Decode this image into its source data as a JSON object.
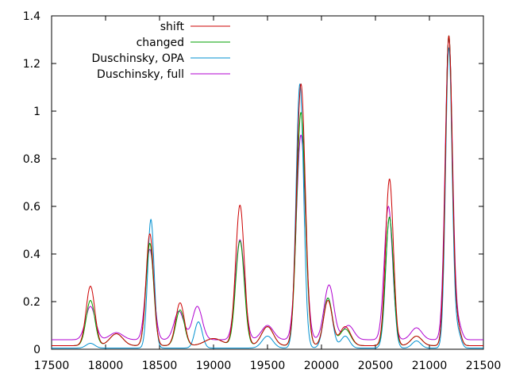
{
  "chart_data": {
    "type": "line",
    "xlim": [
      17500,
      21500
    ],
    "ylim": [
      0,
      1.4
    ],
    "x_ticks": [
      "17500",
      "18000",
      "18500",
      "19000",
      "19500",
      "20000",
      "20500",
      "21000",
      "21500"
    ],
    "y_ticks": [
      "0",
      "0.2",
      "0.4",
      "0.6",
      "0.8",
      "1",
      "1.2",
      "1.4"
    ],
    "grid": false,
    "legend_position": "top-right",
    "series": [
      {
        "name": "shift",
        "color": "#cc0000",
        "baseline": 0.015,
        "peaks": [
          [
            17860,
            0.25,
            40
          ],
          [
            18100,
            0.05,
            60
          ],
          [
            18410,
            0.47,
            35
          ],
          [
            18690,
            0.18,
            40
          ],
          [
            19000,
            0.03,
            80
          ],
          [
            19245,
            0.59,
            40
          ],
          [
            19500,
            0.08,
            55
          ],
          [
            19810,
            1.1,
            40
          ],
          [
            20060,
            0.19,
            40
          ],
          [
            20220,
            0.08,
            50
          ],
          [
            20630,
            0.7,
            36
          ],
          [
            20880,
            0.04,
            50
          ],
          [
            21180,
            1.3,
            32
          ],
          [
            21260,
            0.08,
            30
          ]
        ]
      },
      {
        "name": "changed",
        "color": "#00a000",
        "baseline": 0.015,
        "peaks": [
          [
            17860,
            0.19,
            40
          ],
          [
            18100,
            0.05,
            60
          ],
          [
            18410,
            0.43,
            35
          ],
          [
            18690,
            0.15,
            40
          ],
          [
            19000,
            0.03,
            80
          ],
          [
            19245,
            0.44,
            40
          ],
          [
            19500,
            0.08,
            55
          ],
          [
            19810,
            0.98,
            40
          ],
          [
            20060,
            0.2,
            40
          ],
          [
            20220,
            0.07,
            50
          ],
          [
            20630,
            0.54,
            36
          ],
          [
            20880,
            0.04,
            50
          ],
          [
            21180,
            1.3,
            32
          ],
          [
            21260,
            0.08,
            30
          ]
        ]
      },
      {
        "name": "Duschinsky, OPA",
        "color": "#0090d0",
        "baseline": 0.005,
        "peaks": [
          [
            17860,
            0.02,
            40
          ],
          [
            18420,
            0.54,
            30
          ],
          [
            18860,
            0.11,
            35
          ],
          [
            19500,
            0.05,
            50
          ],
          [
            19800,
            1.11,
            35
          ],
          [
            20060,
            0.21,
            40
          ],
          [
            20220,
            0.05,
            40
          ],
          [
            20630,
            0.55,
            35
          ],
          [
            20880,
            0.03,
            40
          ],
          [
            21180,
            1.26,
            30
          ],
          [
            21260,
            0.07,
            30
          ]
        ]
      },
      {
        "name": "Duschinsky, full",
        "color": "#b000d0",
        "baseline": 0.04,
        "peaks": [
          [
            17860,
            0.14,
            45
          ],
          [
            18100,
            0.03,
            60
          ],
          [
            18410,
            0.38,
            38
          ],
          [
            18680,
            0.12,
            45
          ],
          [
            18850,
            0.14,
            45
          ],
          [
            19245,
            0.42,
            42
          ],
          [
            19500,
            0.06,
            55
          ],
          [
            19810,
            0.86,
            42
          ],
          [
            20070,
            0.23,
            45
          ],
          [
            20250,
            0.06,
            50
          ],
          [
            20620,
            0.56,
            38
          ],
          [
            20880,
            0.05,
            50
          ],
          [
            21180,
            1.27,
            34
          ],
          [
            21270,
            0.06,
            30
          ]
        ]
      }
    ]
  }
}
